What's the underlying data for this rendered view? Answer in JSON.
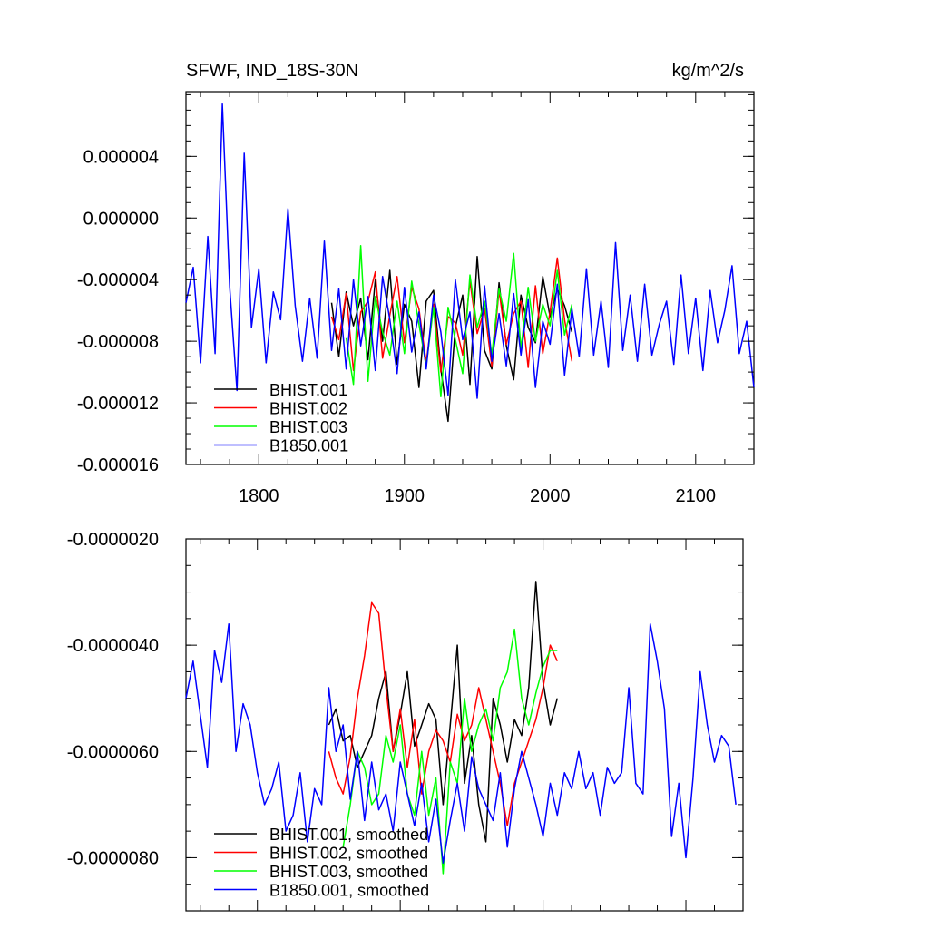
{
  "chart_data": [
    {
      "type": "line",
      "title": "SFWF, IND_18S-30N",
      "units": "kg/m^2/s",
      "xlim": [
        1750,
        2140
      ],
      "ylim": [
        -1.6e-05,
        8.2e-06
      ],
      "x_ticks": [
        1800,
        1900,
        2000,
        2100
      ],
      "x_tick_labels": [
        "1800",
        "1900",
        "2000",
        "2100"
      ],
      "y_ticks": [
        4e-06,
        0.0,
        -4e-06,
        -8e-06,
        -1.2e-05,
        -1.6e-05
      ],
      "y_tick_labels": [
        "0.000004",
        "0.000000",
        "-0.000004",
        "-0.000008",
        "-0.000012",
        "-0.000016"
      ],
      "legend_position": "bottom-left",
      "series": [
        {
          "name": "BHIST.001",
          "color": "#000000",
          "x": [
            1850,
            1855,
            1860,
            1865,
            1870,
            1875,
            1880,
            1885,
            1890,
            1895,
            1900,
            1905,
            1910,
            1915,
            1920,
            1925,
            1930,
            1935,
            1940,
            1945,
            1950,
            1955,
            1960,
            1965,
            1970,
            1975,
            1980,
            1985,
            1990,
            1995,
            2000,
            2005,
            2010,
            2015
          ],
          "y": [
            -5.5e-06,
            -9e-06,
            -4.8e-06,
            -7e-06,
            -5.2e-06,
            -9.2e-06,
            -4e-06,
            -8e-06,
            -3.4e-06,
            -9.5e-06,
            -5.6e-06,
            -6.7e-06,
            -1.1e-05,
            -5.4e-06,
            -4.7e-06,
            -9.8e-06,
            -1.32e-05,
            -7.1e-06,
            -5e-06,
            -1.08e-05,
            -2.5e-06,
            -8.6e-06,
            -9.8e-06,
            -4.2e-06,
            -8.3e-06,
            -1.05e-05,
            -5e-06,
            -7.1e-06,
            -8.1e-06,
            -3.8e-06,
            -6.4e-06,
            -4.6e-06,
            -5.7e-06,
            -7.4e-06
          ]
        },
        {
          "name": "BHIST.002",
          "color": "#ff0000",
          "x": [
            1850,
            1855,
            1860,
            1865,
            1870,
            1875,
            1880,
            1885,
            1890,
            1895,
            1900,
            1905,
            1910,
            1915,
            1920,
            1925,
            1930,
            1935,
            1940,
            1945,
            1950,
            1955,
            1960,
            1965,
            1970,
            1975,
            1980,
            1985,
            1990,
            1995,
            2000,
            2005,
            2010,
            2015
          ],
          "y": [
            -6.4e-06,
            -7.9e-06,
            -4.9e-06,
            -9.9e-06,
            -6.1e-06,
            -5.4e-06,
            -3.5e-06,
            -9.1e-06,
            -6.3e-06,
            -3.8e-06,
            -8.1e-06,
            -4.5e-06,
            -5.9e-06,
            -9.4e-06,
            -5.6e-06,
            -1e-05,
            -6.4e-06,
            -6.8e-06,
            -8.9e-06,
            -4.1e-06,
            -7.5e-06,
            -5.9e-06,
            -9.6e-06,
            -4.7e-06,
            -8.2e-06,
            -6.2e-06,
            -5.4e-06,
            -9.7e-06,
            -4.4e-06,
            -8.8e-06,
            -6.1e-06,
            -2.6e-06,
            -6.6e-06,
            -9.3e-06
          ]
        },
        {
          "name": "BHIST.003",
          "color": "#00ff00",
          "x": [
            1860,
            1865,
            1870,
            1875,
            1880,
            1885,
            1890,
            1895,
            1900,
            1905,
            1910,
            1915,
            1920,
            1925,
            1930,
            1935,
            1940,
            1945,
            1950,
            1955,
            1960,
            1965,
            1970,
            1975,
            1980,
            1985,
            1990,
            1995,
            2000,
            2005,
            2010,
            2015
          ],
          "y": [
            -7.8e-06,
            -1.08e-05,
            -1.8e-06,
            -1.06e-05,
            -5.1e-06,
            -7.4e-06,
            -8.9e-06,
            -5.4e-06,
            -8.8e-06,
            -4.1e-06,
            -6.9e-06,
            -9.6e-06,
            -5.8e-06,
            -1.16e-05,
            -5.8e-06,
            -7.9e-06,
            -1.01e-05,
            -3.7e-06,
            -7.1e-06,
            -5.4e-06,
            -8.9e-06,
            -4.6e-06,
            -6.7e-06,
            -2.3e-06,
            -8.5e-06,
            -4.5e-06,
            -8e-06,
            -5.6e-06,
            -7e-06,
            -3.4e-06,
            -7.6e-06,
            -5.6e-06
          ]
        },
        {
          "name": "B1850.001",
          "color": "#0000ff",
          "x": [
            1750,
            1755,
            1760,
            1765,
            1770,
            1775,
            1780,
            1785,
            1790,
            1795,
            1800,
            1805,
            1810,
            1815,
            1820,
            1825,
            1830,
            1835,
            1840,
            1845,
            1850,
            1855,
            1860,
            1865,
            1870,
            1875,
            1880,
            1885,
            1890,
            1895,
            1900,
            1905,
            1910,
            1915,
            1920,
            1925,
            1930,
            1935,
            1940,
            1945,
            1950,
            1955,
            1960,
            1965,
            1970,
            1975,
            1980,
            1985,
            1990,
            1995,
            2000,
            2005,
            2010,
            2015,
            2020,
            2025,
            2030,
            2035,
            2040,
            2045,
            2050,
            2055,
            2060,
            2065,
            2070,
            2075,
            2080,
            2085,
            2090,
            2095,
            2100,
            2105,
            2110,
            2115,
            2120,
            2125,
            2130,
            2135,
            2140
          ],
          "y": [
            -5.5e-06,
            -3.2e-06,
            -9.4e-06,
            -1.2e-06,
            -8.8e-06,
            7.4e-06,
            -4.5e-06,
            -1.12e-05,
            4.2e-06,
            -7.1e-06,
            -3.3e-06,
            -9.4e-06,
            -4.8e-06,
            -6.6e-06,
            6e-07,
            -5.7e-06,
            -9.3e-06,
            -5.2e-06,
            -9.1e-06,
            -1.5e-06,
            -8.6e-06,
            -4.6e-06,
            -9.8e-06,
            -4e-06,
            -8.3e-06,
            -5.1e-06,
            -9.9e-06,
            -3.8e-06,
            -6.6e-06,
            -1.01e-05,
            -4.5e-06,
            -8.7e-06,
            -6.1e-06,
            -9.8e-06,
            -5e-06,
            -7.4e-06,
            -1.15e-05,
            -4e-06,
            -7.9e-06,
            -6.1e-06,
            -1.17e-05,
            -4.4e-06,
            -9.3e-06,
            -6.2e-06,
            -9.6e-06,
            -4.9e-06,
            -8.9e-06,
            -5.3e-06,
            -1.1e-05,
            -6.7e-06,
            -8.2e-06,
            -4.3e-06,
            -1.02e-05,
            -5.9e-06,
            -9e-06,
            -3.3e-06,
            -8.9e-06,
            -5.4e-06,
            -9.7e-06,
            -1.6e-06,
            -8.6e-06,
            -5e-06,
            -9.3e-06,
            -4.3e-06,
            -8.9e-06,
            -6.9e-06,
            -5.4e-06,
            -9.5e-06,
            -3.7e-06,
            -8.8e-06,
            -5.2e-06,
            -9.9e-06,
            -4.7e-06,
            -8.1e-06,
            -6e-06,
            -3.1e-06,
            -8.8e-06,
            -6.7e-06,
            -1.1e-05
          ]
        }
      ]
    },
    {
      "type": "line",
      "xlim": [
        1750,
        2140
      ],
      "ylim": [
        -9e-06,
        -2e-06
      ],
      "y_ticks": [
        -2e-06,
        -4e-06,
        -6e-06,
        -8e-06
      ],
      "y_tick_labels": [
        "-0.0000020",
        "-0.0000040",
        "-0.0000060",
        "-0.0000080"
      ],
      "legend_position": "bottom-left",
      "series": [
        {
          "name": "BHIST.001, smoothed",
          "color": "#000000",
          "x": [
            1850,
            1855,
            1860,
            1865,
            1870,
            1875,
            1880,
            1885,
            1890,
            1895,
            1900,
            1905,
            1910,
            1915,
            1920,
            1925,
            1930,
            1935,
            1940,
            1945,
            1950,
            1955,
            1960,
            1965,
            1970,
            1975,
            1980,
            1985,
            1990,
            1995,
            2000,
            2005,
            2010
          ],
          "y": [
            -5.5e-06,
            -5.2e-06,
            -5.8e-06,
            -5.7e-06,
            -6.3e-06,
            -6e-06,
            -5.7e-06,
            -5e-06,
            -4.5e-06,
            -6e-06,
            -5.3e-06,
            -4.5e-06,
            -5.9e-06,
            -5.5e-06,
            -5.1e-06,
            -5.4e-06,
            -7e-06,
            -5.5e-06,
            -4e-06,
            -6.6e-06,
            -5.7e-06,
            -7e-06,
            -7.7e-06,
            -5e-06,
            -5.5e-06,
            -6.2e-06,
            -5.4e-06,
            -5.7e-06,
            -4.8e-06,
            -2.8e-06,
            -4.7e-06,
            -5.5e-06,
            -5e-06
          ]
        },
        {
          "name": "BHIST.002, smoothed",
          "color": "#ff0000",
          "x": [
            1850,
            1855,
            1860,
            1865,
            1870,
            1875,
            1880,
            1885,
            1890,
            1895,
            1900,
            1905,
            1910,
            1915,
            1920,
            1925,
            1930,
            1935,
            1940,
            1945,
            1950,
            1955,
            1960,
            1965,
            1970,
            1975,
            1980,
            1985,
            1990,
            1995,
            2000,
            2005,
            2010
          ],
          "y": [
            -6e-06,
            -6.5e-06,
            -6.8e-06,
            -6.1e-06,
            -5e-06,
            -4.2e-06,
            -3.2e-06,
            -3.4e-06,
            -4.8e-06,
            -6e-06,
            -5.2e-06,
            -6.3e-06,
            -5.4e-06,
            -6.8e-06,
            -6e-06,
            -5.6e-06,
            -5.8e-06,
            -6.2e-06,
            -5.3e-06,
            -5.8e-06,
            -5.5e-06,
            -4.8e-06,
            -5.4e-06,
            -6e-06,
            -6.6e-06,
            -7.4e-06,
            -6.6e-06,
            -6.2e-06,
            -5.8e-06,
            -5.4e-06,
            -4.8e-06,
            -4e-06,
            -4.3e-06
          ]
        },
        {
          "name": "BHIST.003, smoothed",
          "color": "#00ff00",
          "x": [
            1860,
            1865,
            1870,
            1875,
            1880,
            1885,
            1890,
            1895,
            1900,
            1905,
            1910,
            1915,
            1920,
            1925,
            1930,
            1935,
            1940,
            1945,
            1950,
            1955,
            1960,
            1965,
            1970,
            1975,
            1980,
            1985,
            1990,
            1995,
            2000,
            2005,
            2010
          ],
          "y": [
            -7.8e-06,
            -7e-06,
            -6e-06,
            -6.3e-06,
            -7e-06,
            -6.8e-06,
            -5.7e-06,
            -6.2e-06,
            -5.5e-06,
            -6.8e-06,
            -7.2e-06,
            -6e-06,
            -7.2e-06,
            -6.5e-06,
            -8.3e-06,
            -6.2e-06,
            -6.6e-06,
            -5e-06,
            -6e-06,
            -5.5e-06,
            -5.2e-06,
            -5.8e-06,
            -4.8e-06,
            -4.5e-06,
            -3.7e-06,
            -5e-06,
            -5.5e-06,
            -4.9e-06,
            -4.4e-06,
            -4.1e-06,
            -4.1e-06
          ]
        },
        {
          "name": "B1850.001, smoothed",
          "color": "#0000ff",
          "x": [
            1750,
            1755,
            1760,
            1765,
            1770,
            1775,
            1780,
            1785,
            1790,
            1795,
            1800,
            1805,
            1810,
            1815,
            1820,
            1825,
            1830,
            1835,
            1840,
            1845,
            1850,
            1855,
            1860,
            1865,
            1870,
            1875,
            1880,
            1885,
            1890,
            1895,
            1900,
            1905,
            1910,
            1915,
            1920,
            1925,
            1930,
            1935,
            1940,
            1945,
            1950,
            1955,
            1960,
            1965,
            1970,
            1975,
            1980,
            1985,
            1990,
            1995,
            2000,
            2005,
            2010,
            2015,
            2020,
            2025,
            2030,
            2035,
            2040,
            2045,
            2050,
            2055,
            2060,
            2065,
            2070,
            2075,
            2080,
            2085,
            2090,
            2095,
            2100,
            2105,
            2110,
            2115,
            2120,
            2125,
            2130,
            2135
          ],
          "y": [
            -5e-06,
            -4.3e-06,
            -5.3e-06,
            -6.3e-06,
            -4.1e-06,
            -4.7e-06,
            -3.6e-06,
            -6e-06,
            -5.1e-06,
            -5.5e-06,
            -6.4e-06,
            -7e-06,
            -6.7e-06,
            -6.2e-06,
            -7.5e-06,
            -7.2e-06,
            -6.4e-06,
            -7.7e-06,
            -6.7e-06,
            -7e-06,
            -4.8e-06,
            -6e-06,
            -5.5e-06,
            -6.9e-06,
            -6e-06,
            -7.3e-06,
            -6.2e-06,
            -7.1e-06,
            -6.8e-06,
            -7.5e-06,
            -6.2e-06,
            -6.8e-06,
            -7.4e-06,
            -6.6e-06,
            -7.7e-06,
            -6.9e-06,
            -8.1e-06,
            -7.3e-06,
            -6.6e-06,
            -7.5e-06,
            -6.1e-06,
            -6.7e-06,
            -7e-06,
            -7.3e-06,
            -6.4e-06,
            -7.8e-06,
            -6.7e-06,
            -6e-06,
            -6.5e-06,
            -7e-06,
            -7.6e-06,
            -6.6e-06,
            -7.2e-06,
            -6.4e-06,
            -6.7e-06,
            -6e-06,
            -6.7e-06,
            -6.4e-06,
            -7.2e-06,
            -6.3e-06,
            -6.6e-06,
            -6.4e-06,
            -4.8e-06,
            -6.6e-06,
            -6.8e-06,
            -3.6e-06,
            -4.3e-06,
            -5.2e-06,
            -7.6e-06,
            -6.6e-06,
            -8e-06,
            -6.5e-06,
            -4.5e-06,
            -5.5e-06,
            -6.2e-06,
            -5.7e-06,
            -5.9e-06,
            -7e-06
          ]
        }
      ]
    }
  ]
}
